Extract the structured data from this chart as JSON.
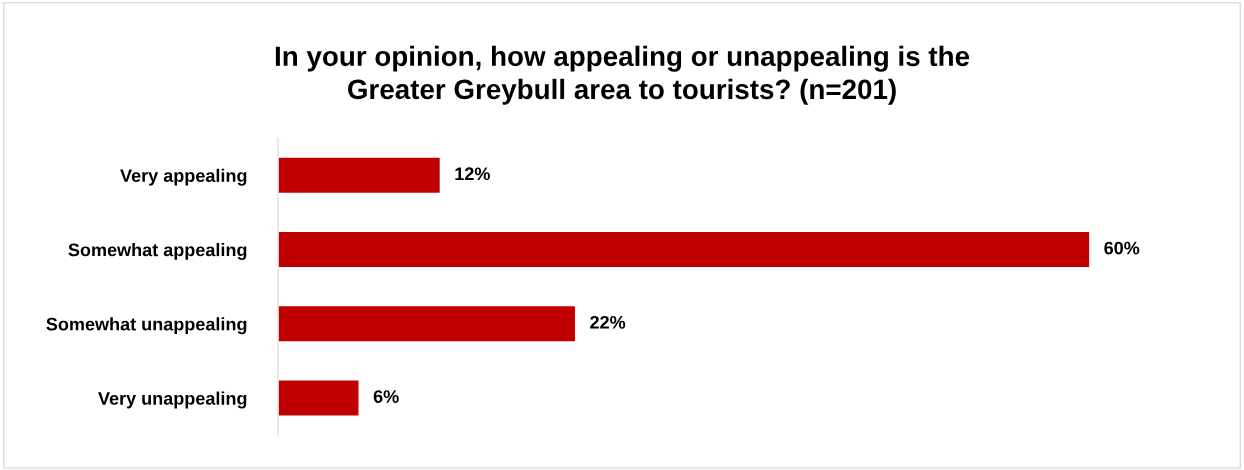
{
  "chart_data": {
    "type": "bar",
    "orientation": "horizontal",
    "title": "In your opinion, how appealing or unappealing is the\nGreater Greybull area to tourists? (n=201)",
    "categories": [
      "Very appealing",
      "Somewhat appealing",
      "Somewhat unappealing",
      "Very unappealing"
    ],
    "values": [
      12,
      60,
      22,
      6
    ],
    "value_labels": [
      "12%",
      "60%",
      "22%",
      "6%"
    ],
    "color": "#c00000",
    "grid": false,
    "legend": false,
    "tick_labels": "y"
  }
}
